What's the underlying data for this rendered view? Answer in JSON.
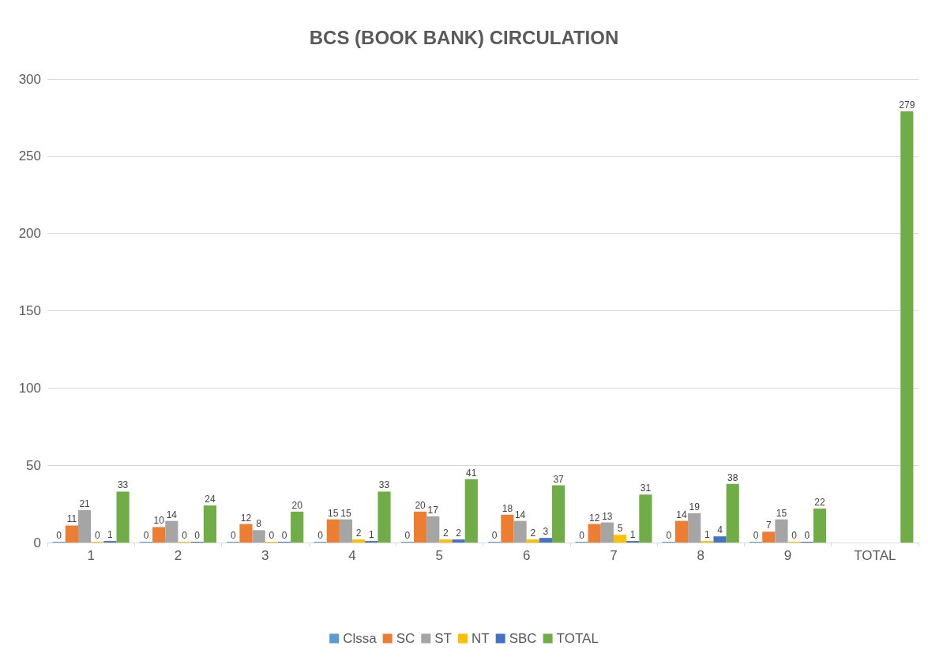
{
  "chart_data": {
    "type": "bar",
    "title": "BCS (BOOK BANK) CIRCULATION",
    "categories": [
      "1",
      "2",
      "3",
      "4",
      "5",
      "6",
      "7",
      "8",
      "9",
      "TOTAL"
    ],
    "series": [
      {
        "name": "Clssa",
        "color": "#5b9bd5",
        "values": [
          0,
          0,
          0,
          0,
          0,
          0,
          0,
          0,
          0,
          null
        ]
      },
      {
        "name": "SC",
        "color": "#ed7d31",
        "values": [
          11,
          10,
          12,
          15,
          20,
          18,
          12,
          14,
          7,
          null
        ]
      },
      {
        "name": "ST",
        "color": "#a5a5a5",
        "values": [
          21,
          14,
          8,
          15,
          17,
          14,
          13,
          19,
          15,
          null
        ]
      },
      {
        "name": "NT",
        "color": "#ffc000",
        "values": [
          0,
          0,
          0,
          2,
          2,
          2,
          5,
          1,
          0,
          null
        ]
      },
      {
        "name": "SBC",
        "color": "#4472c4",
        "values": [
          1,
          0,
          0,
          1,
          2,
          3,
          1,
          4,
          0,
          null
        ]
      },
      {
        "name": "TOTAL",
        "color": "#70ad47",
        "values": [
          33,
          24,
          20,
          33,
          41,
          37,
          31,
          38,
          22,
          279
        ]
      }
    ],
    "ylim": [
      0,
      300
    ],
    "yticks": [
      0,
      50,
      100,
      150,
      200,
      250,
      300
    ],
    "grid": "y",
    "legend": "bottom",
    "data_labels": true
  }
}
